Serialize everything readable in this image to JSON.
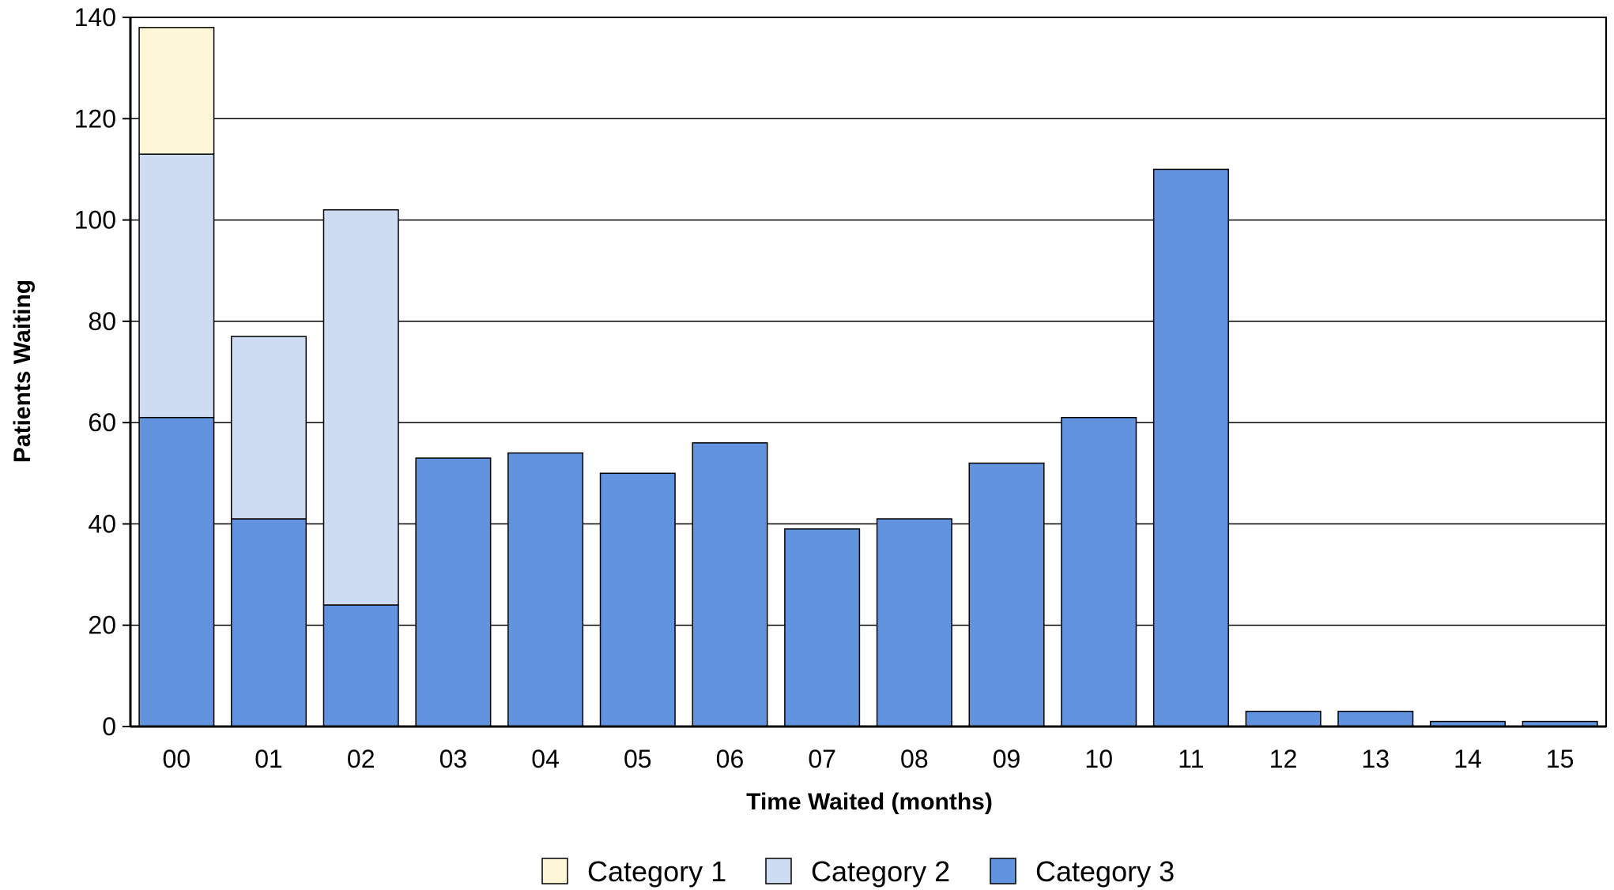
{
  "chart_data": {
    "type": "bar",
    "stacked": true,
    "categories": [
      "00",
      "01",
      "02",
      "03",
      "04",
      "05",
      "06",
      "07",
      "08",
      "09",
      "10",
      "11",
      "12",
      "13",
      "14",
      "15"
    ],
    "series": [
      {
        "name": "Category 3",
        "color": "#6193DF",
        "values": [
          61,
          41,
          24,
          53,
          54,
          50,
          56,
          39,
          41,
          52,
          61,
          110,
          3,
          3,
          1,
          1
        ]
      },
      {
        "name": "Category 2",
        "color": "#CDDCF3",
        "values": [
          52,
          36,
          78,
          0,
          0,
          0,
          0,
          0,
          0,
          0,
          0,
          0,
          0,
          0,
          0,
          0
        ]
      },
      {
        "name": "Category 1",
        "color": "#FEF7D7",
        "values": [
          25,
          0,
          0,
          0,
          0,
          0,
          0,
          0,
          0,
          0,
          0,
          0,
          0,
          0,
          0,
          0
        ]
      }
    ],
    "legend_order": [
      "Category 1",
      "Category 2",
      "Category 3"
    ],
    "legend_position": "bottom",
    "xlabel": "Time Waited (months)",
    "ylabel": "Patients Waiting",
    "ylim": [
      0,
      140
    ],
    "yticks": [
      0,
      20,
      40,
      60,
      80,
      100,
      120,
      140
    ],
    "grid": true
  }
}
